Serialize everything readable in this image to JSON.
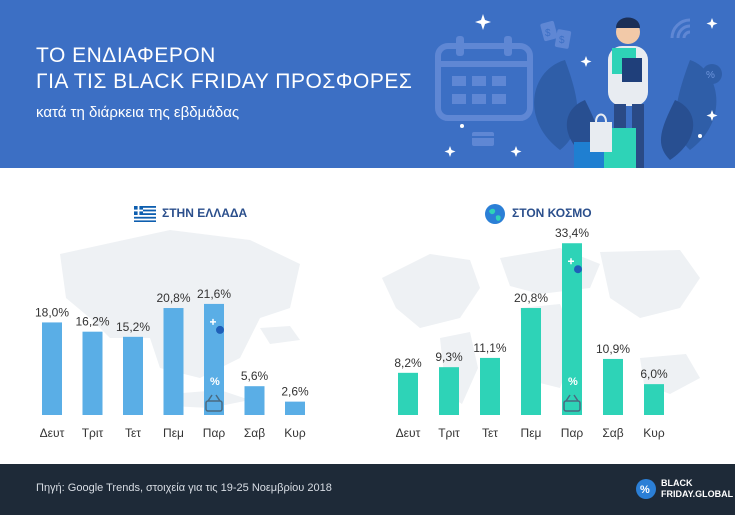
{
  "header": {
    "title_line1": "ΤΟ ΕΝΔΙΑΦΕΡΟΝ",
    "title_line2": "ΓΙΑ ΤΙΣ BLACK FRIDAY ΠΡΟΣΦΟΡΕΣ",
    "subtitle": "κατά τη διάρκεια της εβδμάδας",
    "illustration_icons": [
      "calendar-icon",
      "shopping-bag-icon",
      "price-tag-icon",
      "credit-card-icon",
      "wifi-icon",
      "percent-icon",
      "sparkle-icon"
    ]
  },
  "colors": {
    "header_bg": "#3c6fc4",
    "greece_bar": "#5aaee6",
    "world_bar": "#2ed3b7",
    "section_title": "#2b4f8c",
    "footer_bg": "#1e2a38",
    "map_bg": "#eef1f4"
  },
  "chart_data": [
    {
      "type": "bar",
      "title": "ΣΤΗΝ ΕΛΛΑΔΑ",
      "title_icon": "greece-flag-icon",
      "categories": [
        "Δευτ",
        "Τριτ",
        "Τετ",
        "Πεμ",
        "Παρ",
        "Σαβ",
        "Κυρ"
      ],
      "values": [
        18.0,
        16.2,
        15.2,
        20.8,
        21.6,
        5.6,
        2.6
      ],
      "labels": [
        "18,0%",
        "16,2%",
        "15,2%",
        "20,8%",
        "21,6%",
        "5,6%",
        "2,6%"
      ],
      "highlight_index": 4,
      "highlight_icon": "shopping-basket-icon",
      "unit": "%",
      "ylim": [
        0,
        35
      ],
      "grid": false,
      "color": "#5aaee6"
    },
    {
      "type": "bar",
      "title": "ΣΤΟΝ ΚΟΣΜΟ",
      "title_icon": "globe-icon",
      "categories": [
        "Δευτ",
        "Τριτ",
        "Τετ",
        "Πεμ",
        "Παρ",
        "Σαβ",
        "Κυρ"
      ],
      "values": [
        8.2,
        9.3,
        11.1,
        20.8,
        33.4,
        10.9,
        6.0
      ],
      "labels": [
        "8,2%",
        "9,3%",
        "11,1%",
        "20,8%",
        "33,4%",
        "10,9%",
        "6,0%"
      ],
      "highlight_index": 4,
      "highlight_icon": "shopping-basket-icon",
      "unit": "%",
      "ylim": [
        0,
        35
      ],
      "grid": false,
      "color": "#2ed3b7"
    }
  ],
  "footer": {
    "source": "Πηγή: Google Trends, στοιχεία για τις 19-25 Νοεμβρίου 2018",
    "logo_line1": "BLACK",
    "logo_line2": "FRIDAY.GLOBAL",
    "logo_icon": "percent-badge-icon"
  }
}
